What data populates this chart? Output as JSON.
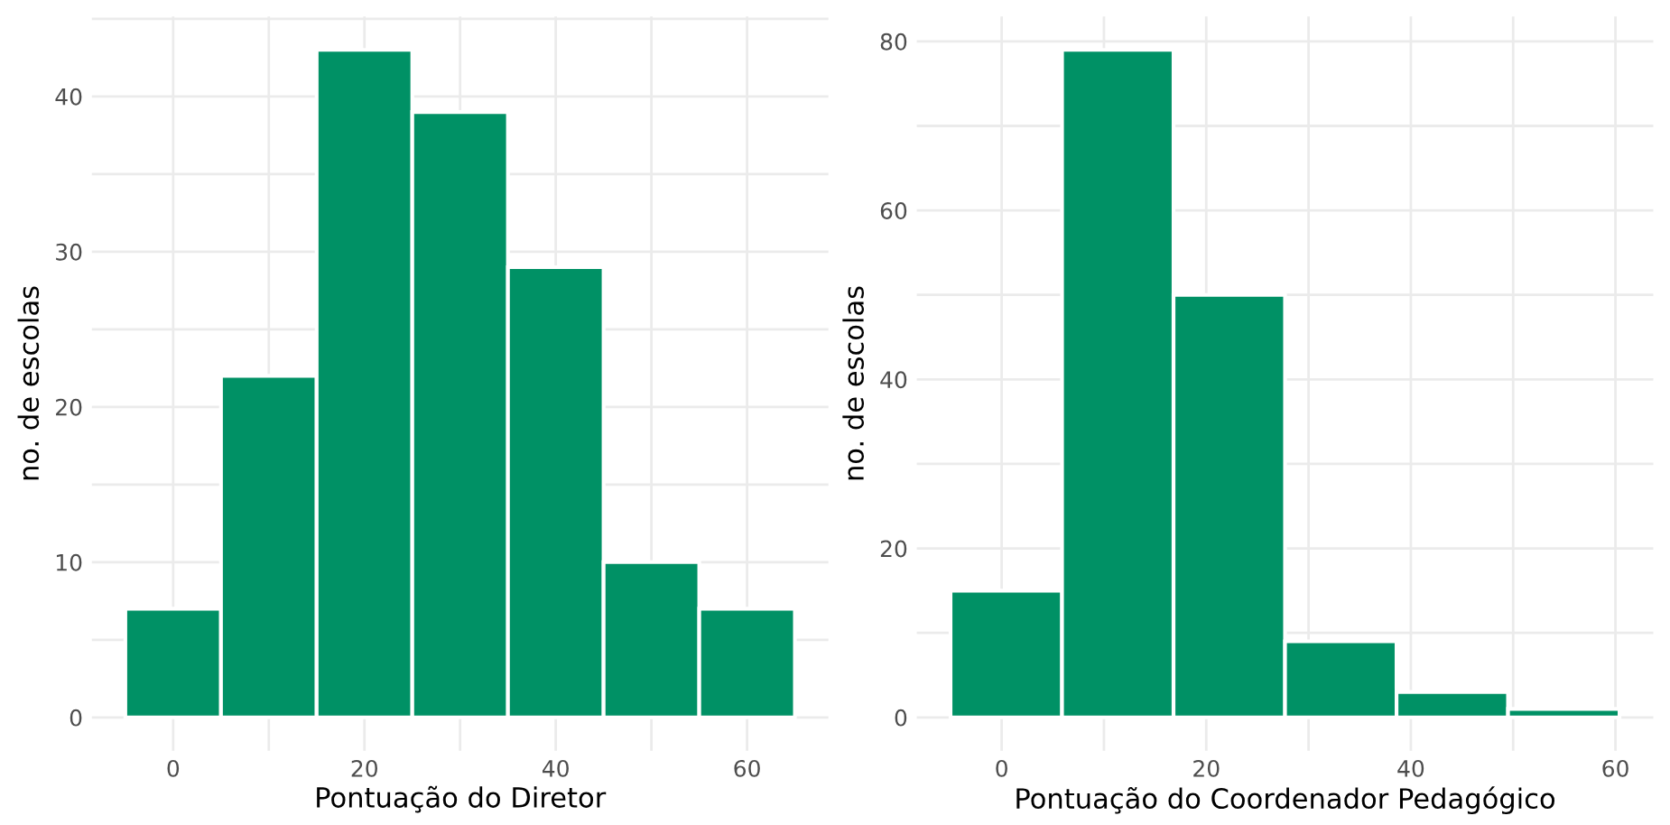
{
  "chart_data": [
    {
      "type": "histogram",
      "xlabel": "Pontuação do Diretor",
      "ylabel": "no. de escolas",
      "bins": [
        -5,
        5,
        15,
        25,
        35,
        45,
        55,
        65
      ],
      "values": [
        7,
        22,
        43,
        39,
        29,
        10,
        7
      ],
      "color": "#009165",
      "xlim": [
        -8.5,
        68.5
      ],
      "ylim": [
        -2.15,
        45.15
      ],
      "xticks": [
        0,
        {
          "value": 10,
          "label": null
        },
        20,
        {
          "value": 30,
          "label": null
        },
        40,
        {
          "value": 50,
          "label": null
        },
        60
      ],
      "yticks": [
        0,
        {
          "value": 5,
          "label": null
        },
        10,
        {
          "value": 15,
          "label": null
        },
        20,
        {
          "value": 25,
          "label": null
        },
        30,
        {
          "value": 35,
          "label": null
        },
        40,
        {
          "value": 45,
          "label": null
        }
      ],
      "grid": true
    },
    {
      "type": "histogram",
      "xlabel": "Pontuação do Coordenador Pedagógico",
      "ylabel": "no. de escolas",
      "bins": [
        -5,
        5.9,
        16.8,
        27.7,
        38.6,
        49.5,
        60.4
      ],
      "values": [
        15,
        79,
        50,
        9,
        3,
        1
      ],
      "color": "#009165",
      "xlim": [
        -8.3,
        63.7
      ],
      "ylim": [
        -3.95,
        82.95
      ],
      "xticks": [
        0,
        {
          "value": 10,
          "label": null
        },
        20,
        {
          "value": 30,
          "label": null
        },
        40,
        {
          "value": 50,
          "label": null
        },
        60
      ],
      "yticks": [
        0,
        {
          "value": 10,
          "label": null
        },
        20,
        {
          "value": 30,
          "label": null
        },
        40,
        {
          "value": 50,
          "label": null
        },
        60,
        {
          "value": 70,
          "label": null
        },
        80
      ],
      "grid": true
    }
  ]
}
